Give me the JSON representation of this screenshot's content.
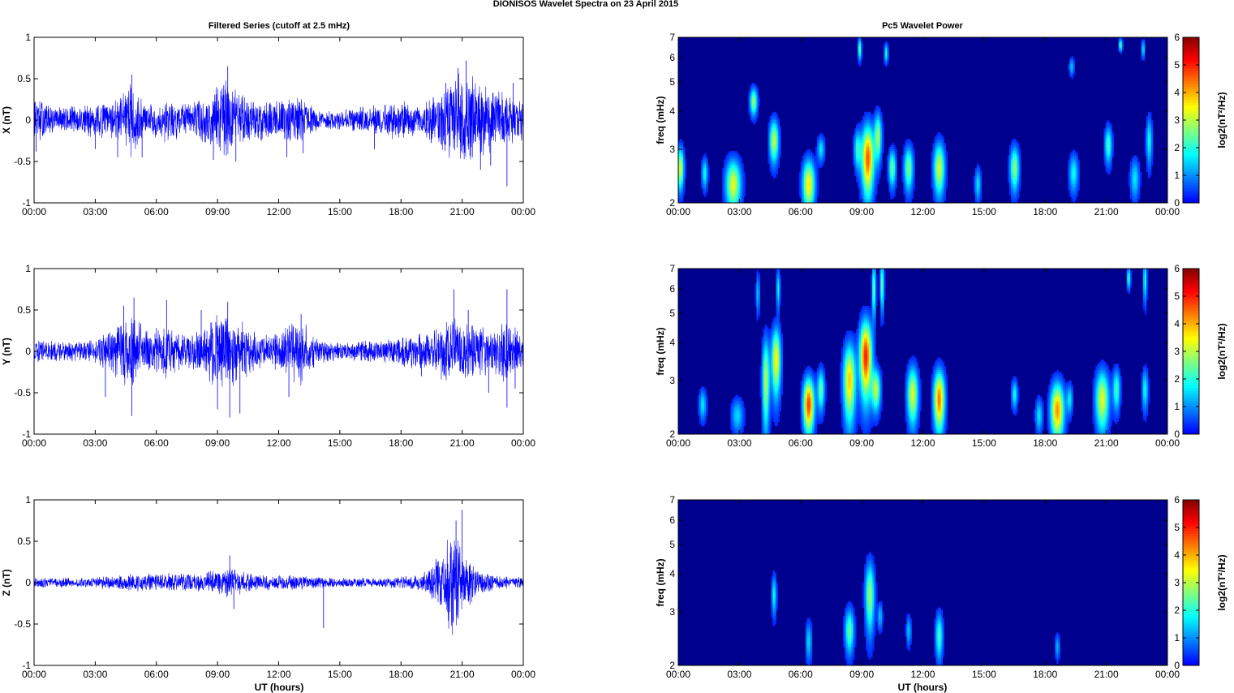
{
  "figure": {
    "title": "DIONISOS Wavelet Spectra on 23 April     2015",
    "left_title": "Filtered Series (cutoff at 2.5 mHz)",
    "right_title": "Pc5 Wavelet Power",
    "xlabel": "UT (hours)"
  },
  "colors": {
    "trace": "#0000ff",
    "background_power": "#00008f"
  },
  "chart_data": [
    {
      "type": "line",
      "component": "X",
      "ylabel": "X (nT)",
      "xlim": [
        0,
        24
      ],
      "ylim": [
        -1,
        1
      ],
      "xticks": [
        "00:00",
        "03:00",
        "06:00",
        "09:00",
        "12:00",
        "15:00",
        "18:00",
        "21:00",
        "00:00"
      ],
      "yticks": [
        "-1",
        "-0.5",
        "0",
        "0.5",
        "1"
      ],
      "series": [
        {
          "values_note_free": true,
          "envelope": [
            [
              0,
              0.3
            ],
            [
              1,
              0.18
            ],
            [
              2.5,
              0.2
            ],
            [
              4,
              0.25
            ],
            [
              4.8,
              0.5
            ],
            [
              5.5,
              0.2
            ],
            [
              6.5,
              0.3
            ],
            [
              7.5,
              0.2
            ],
            [
              8.5,
              0.35
            ],
            [
              9.5,
              0.55
            ],
            [
              10.5,
              0.3
            ],
            [
              11.5,
              0.25
            ],
            [
              13,
              0.3
            ],
            [
              14,
              0.12
            ],
            [
              15.5,
              0.15
            ],
            [
              17,
              0.2
            ],
            [
              18,
              0.25
            ],
            [
              19,
              0.18
            ],
            [
              20,
              0.45
            ],
            [
              21,
              0.6
            ],
            [
              22,
              0.5
            ],
            [
              23,
              0.35
            ],
            [
              24,
              0.25
            ]
          ],
          "spikes": [
            [
              0.1,
              -0.38
            ],
            [
              3,
              -0.35
            ],
            [
              4.1,
              -0.45
            ],
            [
              4.8,
              0.55
            ],
            [
              5.3,
              -0.45
            ],
            [
              8.8,
              -0.48
            ],
            [
              9.5,
              0.65
            ],
            [
              9.9,
              -0.5
            ],
            [
              12.4,
              -0.45
            ],
            [
              13.2,
              -0.4
            ],
            [
              16.7,
              -0.35
            ],
            [
              20.2,
              0.45
            ],
            [
              20.8,
              0.63
            ],
            [
              21.2,
              0.72
            ],
            [
              21.5,
              -0.45
            ],
            [
              21.9,
              -0.6
            ],
            [
              22.4,
              -0.55
            ],
            [
              23.2,
              -0.8
            ],
            [
              23.5,
              0.45
            ]
          ]
        }
      ]
    },
    {
      "type": "heatmap",
      "component": "X",
      "ylabel": "freq (mHz)",
      "clabel": "log2(nT²/Hz)",
      "xlim": [
        0,
        24
      ],
      "ylim": [
        2,
        7
      ],
      "yscale": "log",
      "clim": [
        0,
        6
      ],
      "xticks": [
        "00:00",
        "03:00",
        "06:00",
        "09:00",
        "12:00",
        "15:00",
        "18:00",
        "21:00",
        "00:00"
      ],
      "yticks": [
        2,
        3,
        4,
        5,
        6,
        7
      ],
      "cticks": [
        "0",
        "1",
        "2",
        "3",
        "4",
        "5",
        "6"
      ],
      "blobs": [
        [
          0.1,
          2.6,
          0.12,
          0.28,
          3.2
        ],
        [
          1.3,
          2.5,
          0.1,
          0.2,
          1.8
        ],
        [
          2.7,
          2.3,
          0.25,
          0.3,
          3.3
        ],
        [
          3.7,
          4.3,
          0.12,
          0.3,
          2.8
        ],
        [
          4.7,
          3.2,
          0.15,
          0.35,
          3.1
        ],
        [
          6.4,
          2.3,
          0.2,
          0.3,
          3.6
        ],
        [
          7.0,
          3.0,
          0.12,
          0.2,
          1.6
        ],
        [
          8.8,
          3.0,
          0.12,
          0.3,
          2.0
        ],
        [
          9.3,
          2.8,
          0.2,
          0.5,
          4.6
        ],
        [
          9.8,
          3.3,
          0.12,
          0.4,
          2.8
        ],
        [
          10.5,
          2.6,
          0.12,
          0.25,
          2.5
        ],
        [
          11.3,
          2.6,
          0.15,
          0.3,
          2.6
        ],
        [
          12.8,
          2.6,
          0.18,
          0.35,
          3.2
        ],
        [
          14.7,
          2.3,
          0.1,
          0.2,
          1.6
        ],
        [
          16.5,
          2.6,
          0.15,
          0.3,
          2.7
        ],
        [
          19.4,
          2.5,
          0.15,
          0.25,
          1.8
        ],
        [
          21.1,
          3.1,
          0.12,
          0.3,
          2.2
        ],
        [
          22.4,
          2.4,
          0.15,
          0.25,
          1.6
        ],
        [
          23.1,
          3.2,
          0.1,
          0.4,
          1.8
        ],
        [
          19.3,
          5.6,
          0.08,
          0.25,
          1.4
        ],
        [
          21.7,
          6.6,
          0.06,
          0.2,
          2.4
        ],
        [
          22.8,
          6.4,
          0.06,
          0.3,
          1.6
        ],
        [
          8.9,
          6.4,
          0.06,
          0.35,
          2.4
        ],
        [
          10.2,
          6.2,
          0.06,
          0.3,
          2.0
        ]
      ]
    },
    {
      "type": "line",
      "component": "Y",
      "ylabel": "Y (nT)",
      "xlim": [
        0,
        24
      ],
      "ylim": [
        -1,
        1
      ],
      "xticks": [
        "00:00",
        "03:00",
        "06:00",
        "09:00",
        "12:00",
        "15:00",
        "18:00",
        "21:00",
        "00:00"
      ],
      "yticks": [
        "-1",
        "-0.5",
        "0",
        "0.5",
        "1"
      ],
      "series": [
        {
          "envelope": [
            [
              0,
              0.15
            ],
            [
              1.5,
              0.12
            ],
            [
              3,
              0.15
            ],
            [
              4,
              0.35
            ],
            [
              4.8,
              0.55
            ],
            [
              5.5,
              0.25
            ],
            [
              6.5,
              0.35
            ],
            [
              7.5,
              0.2
            ],
            [
              8.5,
              0.4
            ],
            [
              9.5,
              0.55
            ],
            [
              10.5,
              0.3
            ],
            [
              11.5,
              0.2
            ],
            [
              13,
              0.45
            ],
            [
              14,
              0.15
            ],
            [
              15.5,
              0.12
            ],
            [
              17,
              0.15
            ],
            [
              18,
              0.2
            ],
            [
              19.5,
              0.3
            ],
            [
              20.5,
              0.45
            ],
            [
              21.5,
              0.35
            ],
            [
              22.5,
              0.3
            ],
            [
              23.3,
              0.45
            ],
            [
              24,
              0.2
            ]
          ],
          "spikes": [
            [
              3.5,
              -0.55
            ],
            [
              4.4,
              0.55
            ],
            [
              4.9,
              0.65
            ],
            [
              4.8,
              -0.78
            ],
            [
              6.5,
              0.62
            ],
            [
              8.2,
              0.5
            ],
            [
              9.0,
              -0.7
            ],
            [
              9.5,
              0.6
            ],
            [
              9.6,
              -0.8
            ],
            [
              10.1,
              -0.75
            ],
            [
              13.1,
              0.45
            ],
            [
              12.5,
              -0.55
            ],
            [
              19.0,
              -0.3
            ],
            [
              20.6,
              0.75
            ],
            [
              21.3,
              0.5
            ],
            [
              22.3,
              -0.5
            ],
            [
              23.2,
              0.75
            ],
            [
              23.2,
              -0.68
            ],
            [
              23.6,
              -0.45
            ]
          ]
        }
      ]
    },
    {
      "type": "heatmap",
      "component": "Y",
      "ylabel": "freq (mHz)",
      "clabel": "log2(nT²/Hz)",
      "xlim": [
        0,
        24
      ],
      "ylim": [
        2,
        7
      ],
      "yscale": "log",
      "clim": [
        0,
        6
      ],
      "xticks": [
        "00:00",
        "03:00",
        "06:00",
        "09:00",
        "12:00",
        "15:00",
        "18:00",
        "21:00",
        "00:00"
      ],
      "yticks": [
        2,
        3,
        4,
        5,
        6,
        7
      ],
      "cticks": [
        "0",
        "1",
        "2",
        "3",
        "4",
        "5",
        "6"
      ],
      "blobs": [
        [
          1.2,
          2.5,
          0.12,
          0.2,
          1.6
        ],
        [
          2.9,
          2.3,
          0.2,
          0.2,
          1.5
        ],
        [
          4.3,
          3.0,
          0.12,
          0.7,
          3.0
        ],
        [
          4.8,
          3.5,
          0.15,
          0.6,
          3.6
        ],
        [
          6.4,
          2.5,
          0.18,
          0.35,
          4.8
        ],
        [
          7.0,
          2.8,
          0.12,
          0.3,
          2.4
        ],
        [
          8.4,
          3.0,
          0.2,
          0.6,
          3.8
        ],
        [
          9.2,
          3.6,
          0.2,
          0.7,
          5.0
        ],
        [
          9.7,
          2.8,
          0.15,
          0.3,
          3.0
        ],
        [
          11.5,
          2.7,
          0.18,
          0.4,
          3.3
        ],
        [
          12.8,
          2.6,
          0.18,
          0.4,
          4.4
        ],
        [
          16.5,
          2.7,
          0.1,
          0.2,
          1.8
        ],
        [
          18.6,
          2.4,
          0.22,
          0.35,
          4.2
        ],
        [
          17.7,
          2.3,
          0.12,
          0.2,
          1.6
        ],
        [
          19.2,
          2.6,
          0.1,
          0.2,
          1.6
        ],
        [
          20.8,
          2.6,
          0.22,
          0.4,
          3.3
        ],
        [
          21.5,
          2.8,
          0.12,
          0.3,
          2.2
        ],
        [
          22.9,
          2.8,
          0.1,
          0.3,
          1.8
        ],
        [
          3.9,
          5.8,
          0.06,
          0.6,
          1.4
        ],
        [
          4.9,
          6.0,
          0.06,
          0.6,
          1.8
        ],
        [
          22.1,
          6.5,
          0.06,
          0.35,
          2.2
        ],
        [
          22.9,
          6.4,
          0.06,
          0.7,
          2.0
        ],
        [
          9.6,
          6.0,
          0.06,
          0.8,
          2.6
        ],
        [
          10.0,
          6.2,
          0.06,
          0.8,
          2.6
        ]
      ]
    },
    {
      "type": "line",
      "component": "Z",
      "ylabel": "Z (nT)",
      "xlim": [
        0,
        24
      ],
      "ylim": [
        -1,
        1
      ],
      "xticks": [
        "00:00",
        "03:00",
        "06:00",
        "09:00",
        "12:00",
        "15:00",
        "18:00",
        "21:00",
        "00:00"
      ],
      "yticks": [
        "-1",
        "-0.5",
        "0",
        "0.5",
        "1"
      ],
      "series": [
        {
          "envelope": [
            [
              0,
              0.07
            ],
            [
              2,
              0.06
            ],
            [
              3.5,
              0.08
            ],
            [
              5,
              0.12
            ],
            [
              6.5,
              0.12
            ],
            [
              8,
              0.12
            ],
            [
              9.5,
              0.2
            ],
            [
              11,
              0.1
            ],
            [
              13,
              0.1
            ],
            [
              15,
              0.06
            ],
            [
              17,
              0.06
            ],
            [
              19,
              0.1
            ],
            [
              20,
              0.4
            ],
            [
              20.5,
              0.7
            ],
            [
              21,
              0.45
            ],
            [
              21.8,
              0.15
            ],
            [
              23,
              0.08
            ],
            [
              24,
              0.08
            ]
          ],
          "spikes": [
            [
              9.6,
              0.33
            ],
            [
              9.8,
              -0.32
            ],
            [
              14.2,
              -0.55
            ],
            [
              20.5,
              -0.2
            ],
            [
              20.7,
              0.75
            ],
            [
              21.0,
              0.88
            ],
            [
              21.3,
              -0.22
            ]
          ]
        }
      ]
    },
    {
      "type": "heatmap",
      "component": "Z",
      "ylabel": "freq (mHz)",
      "clabel": "log2(nT²/Hz)",
      "xlim": [
        0,
        24
      ],
      "ylim": [
        2,
        7
      ],
      "yscale": "log",
      "clim": [
        0,
        6
      ],
      "xticks": [
        "00:00",
        "03:00",
        "06:00",
        "09:00",
        "12:00",
        "15:00",
        "18:00",
        "21:00",
        "00:00"
      ],
      "yticks": [
        2,
        3,
        4,
        5,
        6,
        7
      ],
      "cticks": [
        "0",
        "1",
        "2",
        "3",
        "4",
        "5",
        "6"
      ],
      "blobs": [
        [
          4.7,
          3.4,
          0.08,
          0.35,
          1.8
        ],
        [
          6.4,
          2.4,
          0.1,
          0.25,
          1.5
        ],
        [
          8.4,
          2.6,
          0.15,
          0.3,
          2.4
        ],
        [
          9.4,
          3.4,
          0.15,
          0.6,
          2.8
        ],
        [
          9.9,
          2.9,
          0.08,
          0.2,
          1.4
        ],
        [
          11.3,
          2.6,
          0.08,
          0.2,
          1.4
        ],
        [
          12.8,
          2.5,
          0.12,
          0.3,
          2.2
        ],
        [
          18.6,
          2.3,
          0.08,
          0.15,
          1.2
        ]
      ]
    }
  ]
}
